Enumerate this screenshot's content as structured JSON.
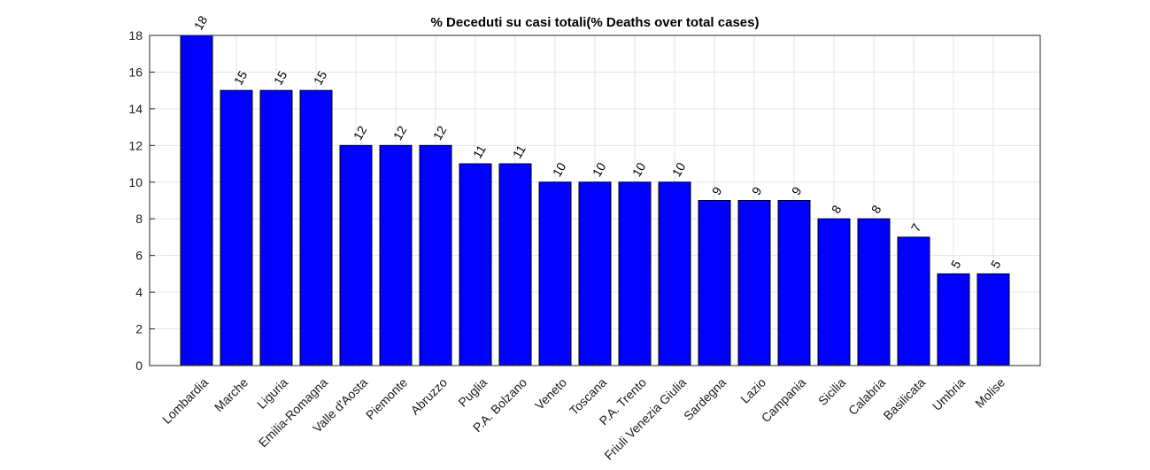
{
  "chart_data": {
    "type": "bar",
    "title": "% Deceduti su casi totali(% Deaths over total cases)",
    "xlabel": "",
    "ylabel": "",
    "categories": [
      "Lombardia",
      "Marche",
      "Liguria",
      "Emilia-Romagna",
      "Valle d'Aosta",
      "Piemonte",
      "Abruzzo",
      "Puglia",
      "P.A. Bolzano",
      "Veneto",
      "Toscana",
      "P.A. Trento",
      "Friuli Venezia Giulia",
      "Sardegna",
      "Lazio",
      "Campania",
      "Sicilia",
      "Calabria",
      "Basilicata",
      "Umbria",
      "Molise"
    ],
    "values": [
      18,
      15,
      15,
      15,
      12,
      12,
      12,
      11,
      11,
      10,
      10,
      10,
      10,
      9,
      9,
      9,
      8,
      8,
      7,
      5,
      5
    ],
    "ylim": [
      0,
      18
    ],
    "yticks": [
      0,
      2,
      4,
      6,
      8,
      10,
      12,
      14,
      16,
      18
    ],
    "grid": true,
    "bar_color": "#0000ff"
  }
}
